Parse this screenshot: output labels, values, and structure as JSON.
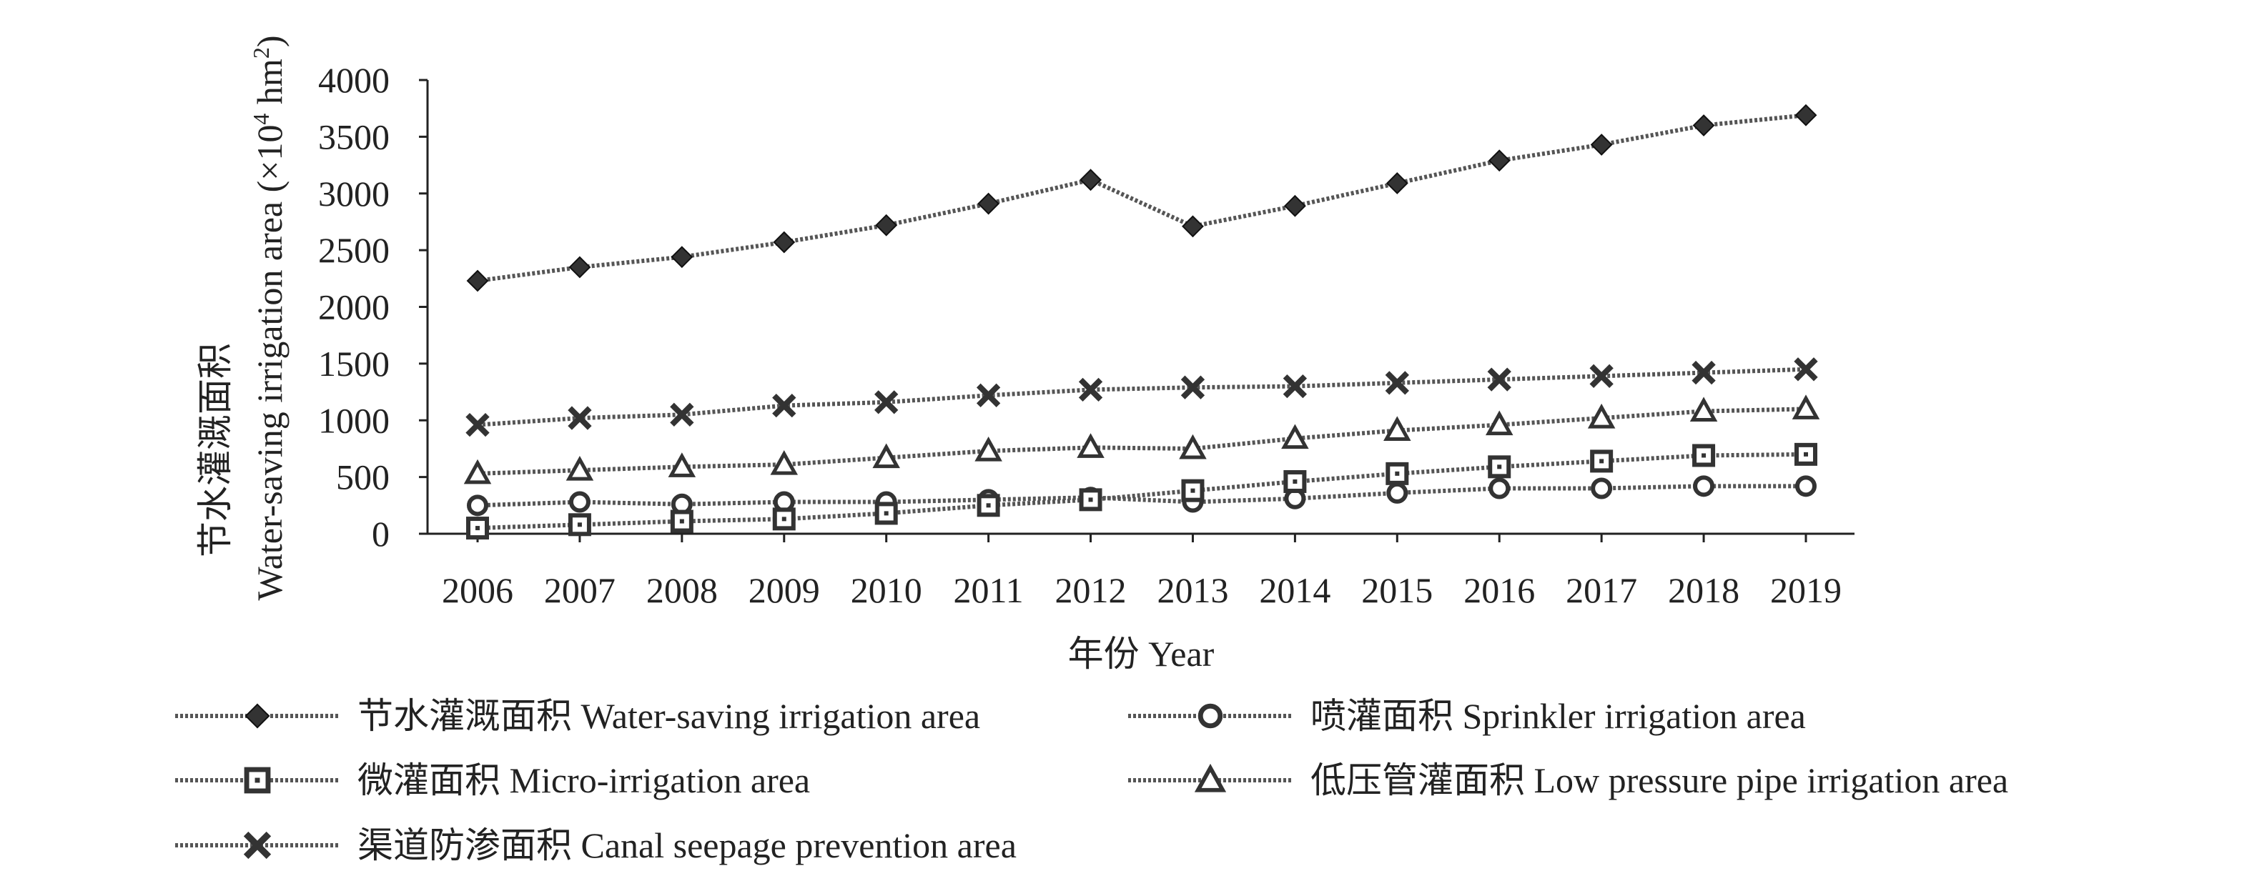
{
  "chart_data": {
    "type": "line",
    "title": "",
    "xlabel": "年份 Year",
    "ylabel_main": "节水灌溉面积",
    "ylabel_sub": "Water-saving irrigation area (×10",
    "ylabel_sup1": "4",
    "ylabel_unit": " hm",
    "ylabel_sup2": "2",
    "ylabel_close": ")",
    "x": [
      "2006",
      "2007",
      "2008",
      "2009",
      "2010",
      "2011",
      "2012",
      "2013",
      "2014",
      "2015",
      "2016",
      "2017",
      "2018",
      "2019"
    ],
    "ylim": [
      0,
      4000
    ],
    "yticks": [
      "0",
      "500",
      "1000",
      "1500",
      "2000",
      "2500",
      "3000",
      "3500",
      "4000"
    ],
    "grid": false,
    "legend_position": "bottom",
    "series": [
      {
        "name": "节水灌溉面积 Water-saving irrigation area",
        "marker": "diamond",
        "values": [
          2230,
          2350,
          2440,
          2570,
          2720,
          2910,
          3120,
          2710,
          2890,
          3090,
          3290,
          3430,
          3600,
          3690
        ]
      },
      {
        "name": "喷灌面积 Sprinkler irrigation area",
        "marker": "circle",
        "values": [
          250,
          280,
          260,
          280,
          280,
          300,
          320,
          280,
          310,
          360,
          400,
          400,
          420,
          420
        ]
      },
      {
        "name": "微灌面积 Micro-irrigation area",
        "marker": "square",
        "values": [
          50,
          80,
          110,
          130,
          180,
          250,
          300,
          380,
          460,
          530,
          590,
          640,
          690,
          700
        ]
      },
      {
        "name": "低压管灌面积 Low pressure pipe irrigation area",
        "marker": "triangle",
        "values": [
          530,
          560,
          590,
          610,
          670,
          730,
          760,
          750,
          840,
          910,
          960,
          1020,
          1080,
          1100
        ]
      },
      {
        "name": "渠道防渗面积 Canal seepage prevention area",
        "marker": "x",
        "values": [
          960,
          1020,
          1050,
          1130,
          1160,
          1220,
          1270,
          1290,
          1300,
          1330,
          1360,
          1390,
          1420,
          1450
        ]
      }
    ]
  }
}
